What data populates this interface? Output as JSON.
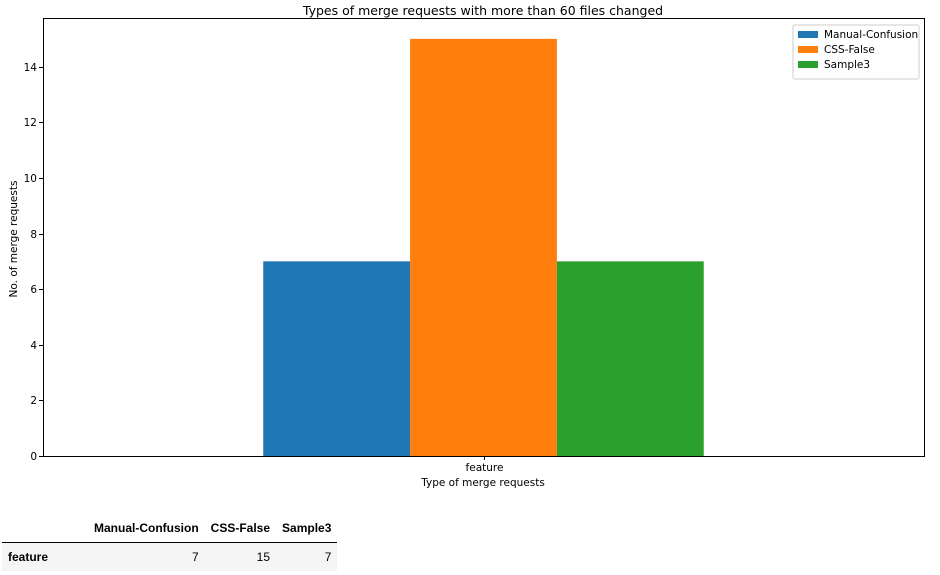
{
  "chart_data": {
    "type": "bar",
    "title": "Types of merge requests with more than 60 files changed",
    "xlabel": "Type of merge requests",
    "ylabel": "No. of merge requests",
    "categories": [
      "feature"
    ],
    "series": [
      {
        "name": "Manual-Confusion",
        "color": "#1f77b4",
        "values": [
          7
        ]
      },
      {
        "name": "CSS-False",
        "color": "#ff7f0e",
        "values": [
          15
        ]
      },
      {
        "name": "Sample3",
        "color": "#2ca02c",
        "values": [
          7
        ]
      }
    ],
    "ylim": [
      0,
      15.75
    ],
    "yticks": [
      0,
      2,
      4,
      6,
      8,
      10,
      12,
      14
    ],
    "grid": false,
    "legend_position": "top-right"
  },
  "table": {
    "columns": [
      "Manual-Confusion",
      "CSS-False",
      "Sample3"
    ],
    "rows": [
      {
        "label": "feature",
        "values": [
          7,
          15,
          7
        ]
      }
    ]
  }
}
